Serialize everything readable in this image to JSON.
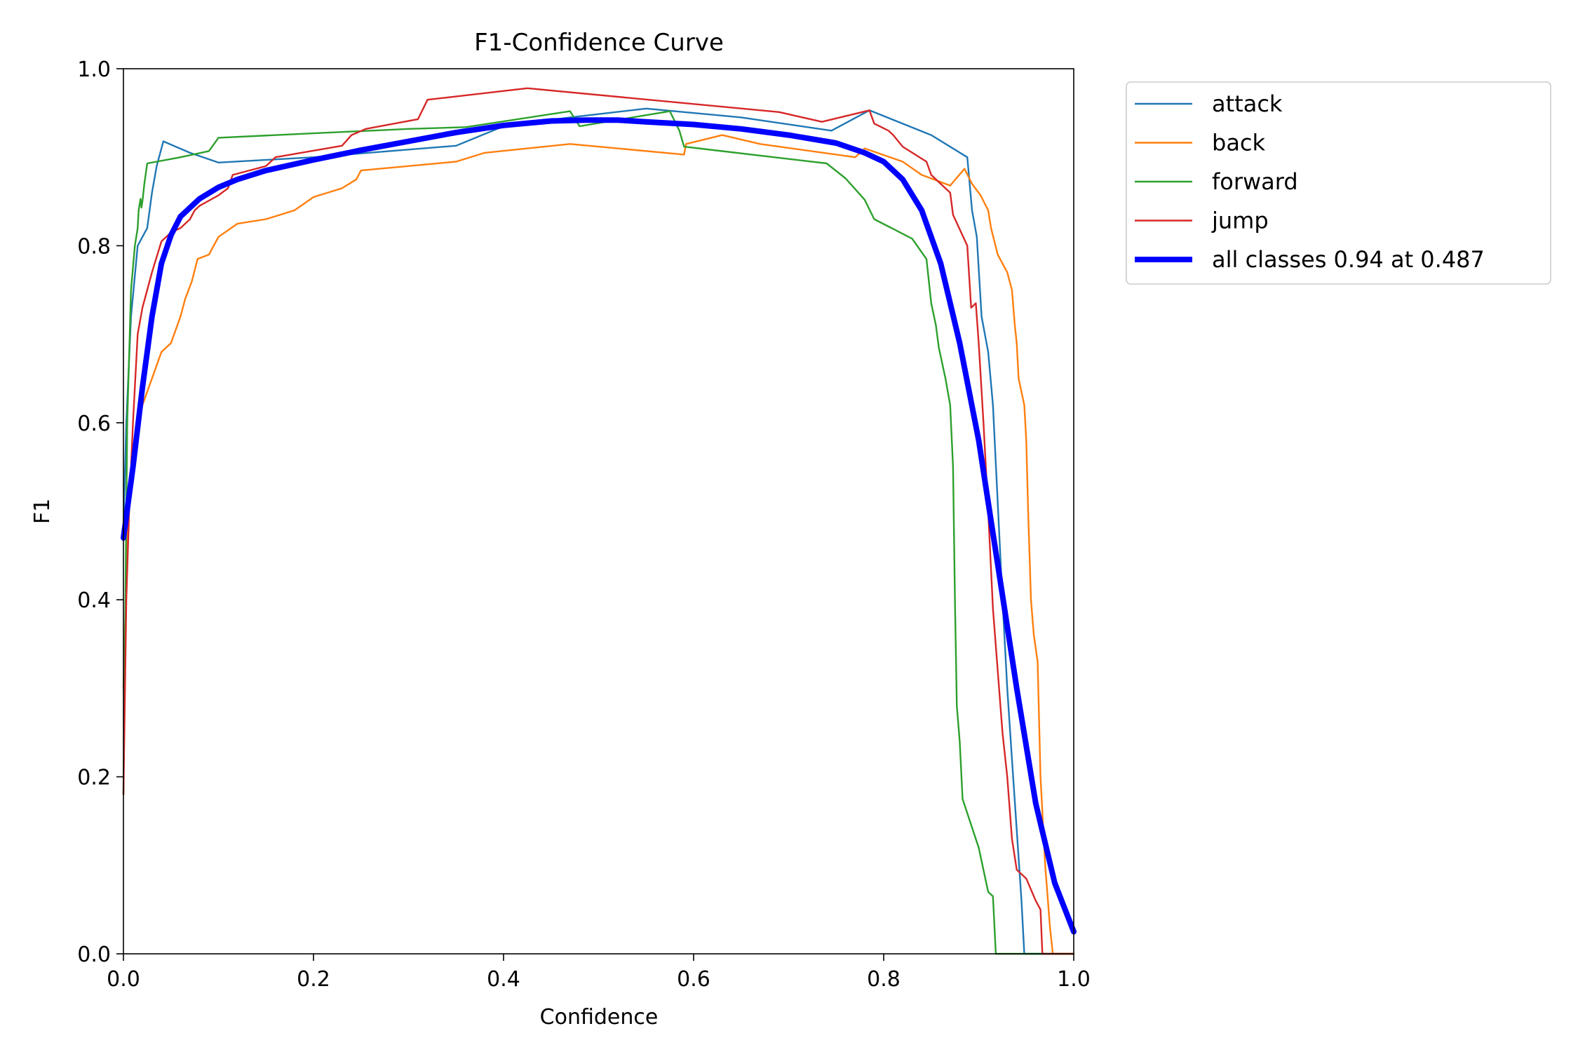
{
  "chart_data": {
    "type": "line",
    "title": "F1-Confidence Curve",
    "xlabel": "Confidence",
    "ylabel": "F1",
    "xlim": [
      0,
      1
    ],
    "ylim": [
      0,
      1
    ],
    "xticks": [
      "0.0",
      "0.2",
      "0.4",
      "0.6",
      "0.8",
      "1.0"
    ],
    "yticks": [
      "0.0",
      "0.2",
      "0.4",
      "0.6",
      "0.8",
      "1.0"
    ],
    "grid": false,
    "legend": "outside-top-right",
    "series": [
      {
        "name": "attack",
        "color": "#1f77b4",
        "width": "thin",
        "points": [
          [
            0,
            0.48
          ],
          [
            0.003,
            0.6
          ],
          [
            0.008,
            0.72
          ],
          [
            0.015,
            0.8
          ],
          [
            0.025,
            0.82
          ],
          [
            0.03,
            0.86
          ],
          [
            0.035,
            0.89
          ],
          [
            0.042,
            0.918
          ],
          [
            0.07,
            0.905
          ],
          [
            0.1,
            0.894
          ],
          [
            0.2,
            0.9
          ],
          [
            0.35,
            0.913
          ],
          [
            0.4,
            0.935
          ],
          [
            0.47,
            0.945
          ],
          [
            0.55,
            0.955
          ],
          [
            0.65,
            0.945
          ],
          [
            0.745,
            0.93
          ],
          [
            0.785,
            0.953
          ],
          [
            0.85,
            0.925
          ],
          [
            0.888,
            0.9
          ],
          [
            0.893,
            0.84
          ],
          [
            0.898,
            0.81
          ],
          [
            0.903,
            0.72
          ],
          [
            0.91,
            0.68
          ],
          [
            0.915,
            0.62
          ],
          [
            0.925,
            0.4
          ],
          [
            0.93,
            0.3
          ],
          [
            0.935,
            0.22
          ],
          [
            0.94,
            0.14
          ],
          [
            0.945,
            0.06
          ],
          [
            0.948,
            0
          ],
          [
            1,
            0
          ]
        ]
      },
      {
        "name": "back",
        "color": "#ff7f0e",
        "width": "thin",
        "points": [
          [
            0,
            0.3
          ],
          [
            0.005,
            0.5
          ],
          [
            0.01,
            0.56
          ],
          [
            0.02,
            0.62
          ],
          [
            0.03,
            0.65
          ],
          [
            0.04,
            0.68
          ],
          [
            0.05,
            0.69
          ],
          [
            0.06,
            0.72
          ],
          [
            0.065,
            0.74
          ],
          [
            0.072,
            0.76
          ],
          [
            0.078,
            0.785
          ],
          [
            0.09,
            0.79
          ],
          [
            0.1,
            0.81
          ],
          [
            0.12,
            0.825
          ],
          [
            0.15,
            0.83
          ],
          [
            0.18,
            0.84
          ],
          [
            0.2,
            0.855
          ],
          [
            0.23,
            0.865
          ],
          [
            0.245,
            0.875
          ],
          [
            0.25,
            0.885
          ],
          [
            0.35,
            0.895
          ],
          [
            0.38,
            0.905
          ],
          [
            0.47,
            0.915
          ],
          [
            0.59,
            0.903
          ],
          [
            0.592,
            0.915
          ],
          [
            0.63,
            0.925
          ],
          [
            0.67,
            0.915
          ],
          [
            0.77,
            0.9
          ],
          [
            0.78,
            0.91
          ],
          [
            0.82,
            0.895
          ],
          [
            0.84,
            0.88
          ],
          [
            0.87,
            0.868
          ],
          [
            0.885,
            0.887
          ],
          [
            0.893,
            0.87
          ],
          [
            0.902,
            0.857
          ],
          [
            0.91,
            0.84
          ],
          [
            0.913,
            0.82
          ],
          [
            0.92,
            0.79
          ],
          [
            0.93,
            0.77
          ],
          [
            0.935,
            0.75
          ],
          [
            0.938,
            0.71
          ],
          [
            0.94,
            0.69
          ],
          [
            0.942,
            0.65
          ],
          [
            0.948,
            0.62
          ],
          [
            0.95,
            0.58
          ],
          [
            0.952,
            0.5
          ],
          [
            0.955,
            0.4
          ],
          [
            0.958,
            0.36
          ],
          [
            0.962,
            0.33
          ],
          [
            0.965,
            0.2
          ],
          [
            0.97,
            0.1
          ],
          [
            0.975,
            0.03
          ],
          [
            0.978,
            0
          ],
          [
            1,
            0
          ]
        ]
      },
      {
        "name": "forward",
        "color": "#2ca02c",
        "width": "thin",
        "points": [
          [
            0,
            0.18
          ],
          [
            0.004,
            0.6
          ],
          [
            0.008,
            0.75
          ],
          [
            0.012,
            0.8
          ],
          [
            0.015,
            0.82
          ],
          [
            0.016,
            0.84
          ],
          [
            0.018,
            0.853
          ],
          [
            0.019,
            0.843
          ],
          [
            0.02,
            0.85
          ],
          [
            0.022,
            0.87
          ],
          [
            0.025,
            0.893
          ],
          [
            0.06,
            0.9
          ],
          [
            0.09,
            0.907
          ],
          [
            0.1,
            0.922
          ],
          [
            0.2,
            0.927
          ],
          [
            0.3,
            0.932
          ],
          [
            0.36,
            0.934
          ],
          [
            0.47,
            0.952
          ],
          [
            0.48,
            0.935
          ],
          [
            0.575,
            0.952
          ],
          [
            0.585,
            0.93
          ],
          [
            0.59,
            0.912
          ],
          [
            0.74,
            0.893
          ],
          [
            0.76,
            0.876
          ],
          [
            0.78,
            0.852
          ],
          [
            0.79,
            0.83
          ],
          [
            0.83,
            0.808
          ],
          [
            0.845,
            0.785
          ],
          [
            0.85,
            0.735
          ],
          [
            0.855,
            0.71
          ],
          [
            0.858,
            0.685
          ],
          [
            0.865,
            0.65
          ],
          [
            0.87,
            0.62
          ],
          [
            0.873,
            0.55
          ],
          [
            0.875,
            0.4
          ],
          [
            0.877,
            0.28
          ],
          [
            0.88,
            0.24
          ],
          [
            0.883,
            0.175
          ],
          [
            0.9,
            0.12
          ],
          [
            0.91,
            0.07
          ],
          [
            0.915,
            0.065
          ],
          [
            0.918,
            0
          ],
          [
            1,
            0
          ]
        ]
      },
      {
        "name": "jump",
        "color": "#d62728",
        "width": "thin",
        "points": [
          [
            0,
            0.18
          ],
          [
            0.003,
            0.4
          ],
          [
            0.006,
            0.5
          ],
          [
            0.01,
            0.6
          ],
          [
            0.015,
            0.7
          ],
          [
            0.02,
            0.73
          ],
          [
            0.025,
            0.75
          ],
          [
            0.03,
            0.77
          ],
          [
            0.04,
            0.805
          ],
          [
            0.05,
            0.815
          ],
          [
            0.06,
            0.82
          ],
          [
            0.07,
            0.83
          ],
          [
            0.075,
            0.84
          ],
          [
            0.08,
            0.845
          ],
          [
            0.1,
            0.857
          ],
          [
            0.11,
            0.865
          ],
          [
            0.115,
            0.88
          ],
          [
            0.15,
            0.89
          ],
          [
            0.16,
            0.9
          ],
          [
            0.23,
            0.913
          ],
          [
            0.24,
            0.925
          ],
          [
            0.255,
            0.932
          ],
          [
            0.31,
            0.943
          ],
          [
            0.32,
            0.965
          ],
          [
            0.425,
            0.978
          ],
          [
            0.69,
            0.951
          ],
          [
            0.735,
            0.94
          ],
          [
            0.785,
            0.953
          ],
          [
            0.79,
            0.938
          ],
          [
            0.805,
            0.93
          ],
          [
            0.81,
            0.925
          ],
          [
            0.82,
            0.912
          ],
          [
            0.845,
            0.895
          ],
          [
            0.85,
            0.88
          ],
          [
            0.86,
            0.87
          ],
          [
            0.87,
            0.86
          ],
          [
            0.873,
            0.835
          ],
          [
            0.888,
            0.8
          ],
          [
            0.892,
            0.73
          ],
          [
            0.897,
            0.735
          ],
          [
            0.9,
            0.69
          ],
          [
            0.905,
            0.6
          ],
          [
            0.91,
            0.5
          ],
          [
            0.915,
            0.39
          ],
          [
            0.92,
            0.32
          ],
          [
            0.925,
            0.25
          ],
          [
            0.93,
            0.2
          ],
          [
            0.935,
            0.13
          ],
          [
            0.94,
            0.095
          ],
          [
            0.95,
            0.085
          ],
          [
            0.96,
            0.06
          ],
          [
            0.965,
            0.05
          ],
          [
            0.967,
            0
          ],
          [
            1,
            0
          ]
        ]
      },
      {
        "name": "all classes 0.94 at 0.487",
        "color": "#0000ff",
        "width": "thick",
        "points": [
          [
            0,
            0.47
          ],
          [
            0.01,
            0.55
          ],
          [
            0.02,
            0.64
          ],
          [
            0.03,
            0.72
          ],
          [
            0.04,
            0.78
          ],
          [
            0.05,
            0.812
          ],
          [
            0.06,
            0.833
          ],
          [
            0.08,
            0.853
          ],
          [
            0.1,
            0.866
          ],
          [
            0.12,
            0.875
          ],
          [
            0.15,
            0.885
          ],
          [
            0.2,
            0.897
          ],
          [
            0.25,
            0.908
          ],
          [
            0.3,
            0.918
          ],
          [
            0.35,
            0.928
          ],
          [
            0.4,
            0.936
          ],
          [
            0.45,
            0.941
          ],
          [
            0.487,
            0.942
          ],
          [
            0.52,
            0.942
          ],
          [
            0.55,
            0.94
          ],
          [
            0.6,
            0.937
          ],
          [
            0.65,
            0.932
          ],
          [
            0.7,
            0.925
          ],
          [
            0.75,
            0.916
          ],
          [
            0.78,
            0.905
          ],
          [
            0.8,
            0.895
          ],
          [
            0.82,
            0.875
          ],
          [
            0.84,
            0.84
          ],
          [
            0.86,
            0.78
          ],
          [
            0.88,
            0.69
          ],
          [
            0.9,
            0.58
          ],
          [
            0.92,
            0.44
          ],
          [
            0.94,
            0.3
          ],
          [
            0.96,
            0.17
          ],
          [
            0.98,
            0.08
          ],
          [
            1,
            0.025
          ]
        ]
      }
    ]
  }
}
